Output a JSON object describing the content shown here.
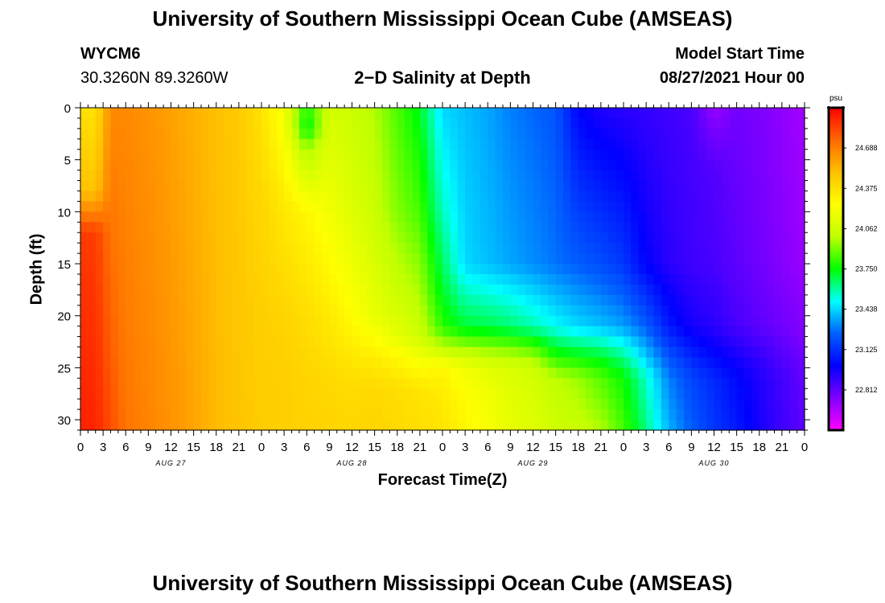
{
  "page_title": "University of Southern Mississippi Ocean Cube (AMSEAS)",
  "footer_title": "University of Southern Mississippi Ocean Cube (AMSEAS)",
  "station": {
    "id": "WYCM6",
    "coords": "30.3260N  89.3260W"
  },
  "model_start": {
    "label": "Model Start Time",
    "value": "08/27/2021 Hour 00"
  },
  "chart_data": {
    "type": "heatmap",
    "title": "2−D Salinity at Depth",
    "xlabel": "Forecast Time(Z)",
    "ylabel": "Depth (ft)",
    "xlim": [
      0,
      96
    ],
    "ylim": [
      0,
      31
    ],
    "x_ticks": [
      0,
      3,
      6,
      9,
      12,
      15,
      18,
      21,
      24,
      27,
      30,
      33,
      36,
      39,
      42,
      45,
      48,
      51,
      54,
      57,
      60,
      63,
      66,
      69,
      72,
      75,
      78,
      81,
      84,
      87,
      90,
      93,
      96
    ],
    "x_tick_labels": [
      "0",
      "3",
      "6",
      "9",
      "12",
      "15",
      "18",
      "21",
      "0",
      "3",
      "6",
      "9",
      "12",
      "15",
      "18",
      "21",
      "0",
      "3",
      "6",
      "9",
      "12",
      "15",
      "18",
      "21",
      "0",
      "3",
      "6",
      "9",
      "12",
      "15",
      "18",
      "21",
      "0"
    ],
    "day_labels": [
      {
        "hour": 12,
        "label": "AUG 27"
      },
      {
        "hour": 36,
        "label": "AUG 28"
      },
      {
        "hour": 60,
        "label": "AUG 29"
      },
      {
        "hour": 84,
        "label": "AUG 30"
      }
    ],
    "y_ticks": [
      0,
      5,
      10,
      15,
      20,
      25,
      30
    ],
    "y_tick_labels": [
      "0",
      "5",
      "10",
      "15",
      "20",
      "25",
      "30"
    ],
    "colorbar": {
      "unit": "psu",
      "min": 22.5,
      "max": 25.0,
      "ticks": [
        "24.688",
        "24.375",
        "24.062",
        "23.750",
        "23.438",
        "23.125",
        "22.812"
      ],
      "colors": [
        "#ff0000",
        "#ff6a00",
        "#ffc000",
        "#ffff00",
        "#c0ff00",
        "#00ff00",
        "#00ffff",
        "#0060ff",
        "#0000ff",
        "#8000ff",
        "#ff00ff"
      ]
    },
    "salinity_profiles": [
      {
        "hour": 0,
        "depths": [
          0,
          8,
          12,
          31
        ],
        "psu": [
          24.38,
          24.5,
          24.86,
          24.92
        ]
      },
      {
        "hour": 2,
        "depths": [
          0,
          8,
          12,
          31
        ],
        "psu": [
          24.36,
          24.48,
          24.86,
          24.92
        ]
      },
      {
        "hour": 4,
        "depths": [
          0,
          31
        ],
        "psu": [
          24.66,
          24.82
        ]
      },
      {
        "hour": 6,
        "depths": [
          0,
          31
        ],
        "psu": [
          24.66,
          24.72
        ]
      },
      {
        "hour": 10,
        "depths": [
          0,
          31
        ],
        "psu": [
          24.62,
          24.66
        ]
      },
      {
        "hour": 14,
        "depths": [
          0,
          31
        ],
        "psu": [
          24.56,
          24.6
        ]
      },
      {
        "hour": 18,
        "depths": [
          0,
          31
        ],
        "psu": [
          24.5,
          24.52
        ]
      },
      {
        "hour": 21,
        "depths": [
          0,
          31
        ],
        "psu": [
          24.46,
          24.48
        ]
      },
      {
        "hour": 23,
        "depths": [
          0,
          10,
          20,
          31
        ],
        "psu": [
          24.4,
          24.42,
          24.45,
          24.46
        ]
      },
      {
        "hour": 24,
        "depths": [
          0,
          10,
          20,
          31
        ],
        "psu": [
          24.36,
          24.42,
          24.44,
          24.45
        ]
      },
      {
        "hour": 27,
        "depths": [
          0,
          10,
          20,
          26,
          31
        ],
        "psu": [
          24.2,
          24.34,
          24.42,
          24.44,
          24.44
        ]
      },
      {
        "hour": 30,
        "depths": [
          0,
          2,
          4,
          10,
          20,
          26,
          31
        ],
        "psu": [
          23.78,
          23.72,
          23.96,
          24.28,
          24.38,
          24.42,
          24.43
        ]
      },
      {
        "hour": 33,
        "depths": [
          0,
          10,
          20,
          26,
          31
        ],
        "psu": [
          24.08,
          24.2,
          24.33,
          24.4,
          24.42
        ]
      },
      {
        "hour": 36,
        "depths": [
          0,
          10,
          20,
          26,
          31
        ],
        "psu": [
          24.04,
          24.12,
          24.26,
          24.38,
          24.41
        ]
      },
      {
        "hour": 39,
        "depths": [
          0,
          10,
          20,
          24,
          27,
          31
        ],
        "psu": [
          23.98,
          24.04,
          24.16,
          24.32,
          24.4,
          24.42
        ]
      },
      {
        "hour": 42,
        "depths": [
          0,
          10,
          18,
          22,
          24,
          27,
          31
        ],
        "psu": [
          23.85,
          23.92,
          24.05,
          24.15,
          24.28,
          24.38,
          24.4
        ]
      },
      {
        "hour": 45,
        "depths": [
          0,
          10,
          18,
          22,
          24,
          27,
          31
        ],
        "psu": [
          23.72,
          23.84,
          23.98,
          24.06,
          24.2,
          24.35,
          24.38
        ]
      },
      {
        "hour": 48,
        "depths": [
          0,
          10,
          18,
          21,
          23,
          25,
          28,
          31
        ],
        "psu": [
          23.44,
          23.56,
          23.72,
          23.8,
          24.0,
          24.28,
          24.33,
          24.36
        ]
      },
      {
        "hour": 51,
        "depths": [
          0,
          15,
          21,
          23,
          25,
          28,
          31
        ],
        "psu": [
          23.4,
          23.44,
          23.7,
          23.95,
          24.2,
          24.26,
          24.28
        ]
      },
      {
        "hour": 54,
        "depths": [
          0,
          15,
          21,
          23,
          25,
          28,
          31
        ],
        "psu": [
          23.36,
          23.4,
          23.68,
          23.92,
          24.14,
          24.2,
          24.22
        ]
      },
      {
        "hour": 57,
        "depths": [
          0,
          15,
          21,
          23,
          25,
          28,
          31
        ],
        "psu": [
          23.3,
          23.36,
          23.64,
          23.9,
          24.1,
          24.14,
          24.16
        ]
      },
      {
        "hour": 60,
        "depths": [
          0,
          15,
          21,
          23,
          25,
          28,
          31
        ],
        "psu": [
          23.26,
          23.32,
          23.58,
          23.85,
          24.06,
          24.1,
          24.12
        ]
      },
      {
        "hour": 63,
        "depths": [
          0,
          15,
          21,
          24,
          26,
          31
        ],
        "psu": [
          23.22,
          23.28,
          23.5,
          23.8,
          24.0,
          24.06
        ]
      },
      {
        "hour": 66,
        "depths": [
          0,
          15,
          21,
          24,
          26,
          31
        ],
        "psu": [
          23.0,
          23.24,
          23.44,
          23.76,
          23.95,
          24.04
        ]
      },
      {
        "hour": 69,
        "depths": [
          0,
          15,
          21,
          24,
          26,
          31
        ],
        "psu": [
          22.94,
          23.2,
          23.4,
          23.72,
          23.86,
          23.98
        ]
      },
      {
        "hour": 72,
        "depths": [
          0,
          15,
          21,
          24,
          26,
          31
        ],
        "psu": [
          22.92,
          23.14,
          23.35,
          23.62,
          23.76,
          23.84
        ]
      },
      {
        "hour": 75,
        "depths": [
          0,
          15,
          21,
          24,
          26,
          31
        ],
        "psu": [
          22.9,
          23.0,
          23.24,
          23.42,
          23.55,
          23.62
        ]
      },
      {
        "hour": 78,
        "depths": [
          0,
          15,
          21,
          24,
          26,
          31
        ],
        "psu": [
          22.88,
          22.92,
          23.06,
          23.22,
          23.3,
          23.38
        ]
      },
      {
        "hour": 81,
        "depths": [
          0,
          15,
          21,
          24,
          26,
          31
        ],
        "psu": [
          22.86,
          22.88,
          22.96,
          23.1,
          23.18,
          23.24
        ]
      },
      {
        "hour": 84,
        "depths": [
          0,
          3,
          6,
          15,
          21,
          24,
          26,
          31
        ],
        "psu": [
          22.7,
          22.78,
          22.84,
          22.86,
          22.92,
          23.02,
          23.1,
          23.14
        ]
      },
      {
        "hour": 87,
        "depths": [
          0,
          15,
          21,
          24,
          26,
          31
        ],
        "psu": [
          22.78,
          22.82,
          22.86,
          22.96,
          23.02,
          23.06
        ]
      },
      {
        "hour": 90,
        "depths": [
          0,
          15,
          21,
          24,
          26,
          31
        ],
        "psu": [
          22.76,
          22.78,
          22.82,
          22.9,
          22.94,
          22.96
        ]
      },
      {
        "hour": 93,
        "depths": [
          0,
          15,
          21,
          24,
          26,
          31
        ],
        "psu": [
          22.72,
          22.74,
          22.78,
          22.84,
          22.87,
          22.88
        ]
      },
      {
        "hour": 96,
        "depths": [
          0,
          15,
          21,
          24,
          26,
          31
        ],
        "psu": [
          22.68,
          22.7,
          22.74,
          22.78,
          22.8,
          22.82
        ]
      }
    ]
  }
}
